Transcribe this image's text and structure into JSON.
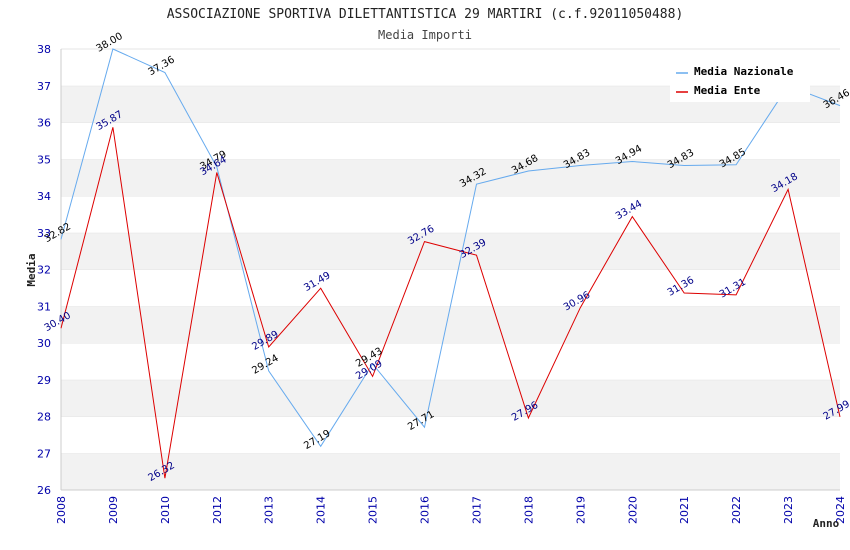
{
  "chart_data": {
    "type": "line",
    "title": "ASSOCIAZIONE SPORTIVA DILETTANTISTICA 29 MARTIRI (c.f.92011050488)",
    "subtitle": "Media Importi",
    "xlabel": "Anno",
    "ylabel": "Media",
    "ylim": [
      26,
      38
    ],
    "yticks": [
      "26",
      "27",
      "28",
      "29",
      "30",
      "31",
      "32",
      "33",
      "34",
      "35",
      "36",
      "37",
      "38"
    ],
    "categories": [
      "2008",
      "2009",
      "2010",
      "2012",
      "2013",
      "2014",
      "2015",
      "2016",
      "2017",
      "2018",
      "2019",
      "2020",
      "2021",
      "2022",
      "2023",
      "2024"
    ],
    "grid": true,
    "legend_position": "top-right",
    "series": [
      {
        "name": "Media Nazionale",
        "color": "#66aaee",
        "label_color": "#000000",
        "values": [
          32.82,
          38.0,
          37.36,
          34.79,
          29.24,
          27.19,
          29.43,
          27.71,
          34.32,
          34.68,
          34.83,
          34.94,
          34.83,
          34.85,
          37.0,
          36.46
        ],
        "labels": [
          "32.82",
          "38.00",
          "37.36",
          "34.79",
          "29.24",
          "27.19",
          "29.43",
          "27.71",
          "34.32",
          "34.68",
          "34.83",
          "34.94",
          "34.83",
          "34.85",
          "",
          "36.46"
        ]
      },
      {
        "name": "Media Ente",
        "color": "#dd0000",
        "label_color": "#000088",
        "values": [
          30.4,
          35.87,
          26.32,
          34.64,
          29.89,
          31.49,
          29.09,
          32.76,
          32.39,
          27.96,
          30.96,
          33.44,
          31.36,
          31.31,
          34.18,
          27.99
        ],
        "labels": [
          "30.40",
          "35.87",
          "26.32",
          "34.64",
          "29.89",
          "31.49",
          "29.09",
          "32.76",
          "32.39",
          "27.96",
          "30.96",
          "33.44",
          "31.36",
          "31.31",
          "34.18",
          "27.99"
        ]
      }
    ]
  }
}
